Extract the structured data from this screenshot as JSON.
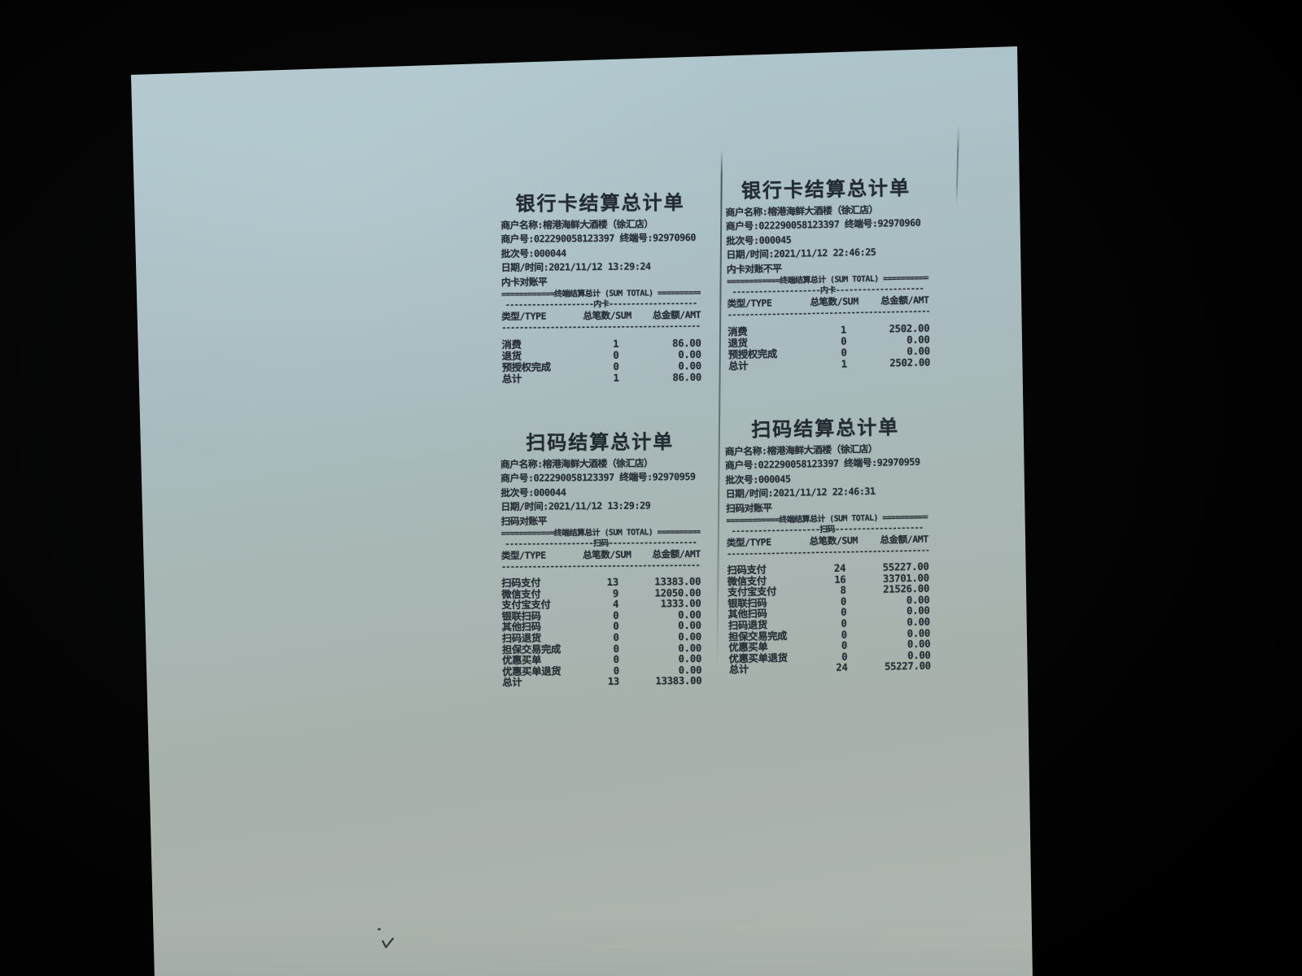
{
  "scene": {
    "background_color": "#020202",
    "paper_tint_top": "#aec5cb",
    "paper_tint_bottom": "#b2b9b2",
    "ink_color": "#262e35"
  },
  "receipts": [
    {
      "id": "bank-card-left",
      "title": "银行卡结算总计单",
      "info_lines": [
        "商户名称:榕港海鲜大酒楼（徐汇店）",
        "商户号:022290058123397 终端号:92970960",
        "批次号:000044",
        "日期/时间:2021/11/12 13:29:24",
        "内卡对账平"
      ],
      "sum_header": "============终端结算总计 (SUM TOTAL) ===========",
      "group_line": "--------------------内卡--------------------",
      "columns": [
        "类型/TYPE",
        "总笔数/SUM",
        "总金额/AMT"
      ],
      "divider": "----------------------------------------------",
      "rows": [
        {
          "type": "消费",
          "count": "1",
          "amount": "86.00"
        },
        {
          "type": "退货",
          "count": "0",
          "amount": "0.00"
        },
        {
          "type": "预授权完成",
          "count": "0",
          "amount": "0.00"
        },
        {
          "type": "总计",
          "count": "1",
          "amount": "86.00"
        }
      ]
    },
    {
      "id": "bank-card-right",
      "title": "银行卡结算总计单",
      "info_lines": [
        "商户名称:榕港海鲜大酒楼（徐汇店）",
        "商户号:022290058123397 终端号:92970960",
        "批次号:000045",
        "日期/时间:2021/11/12 22:46:25",
        "内卡对账不平"
      ],
      "sum_header": "============终端结算总计 (SUM TOTAL) ===========",
      "group_line": "--------------------内卡--------------------",
      "columns": [
        "类型/TYPE",
        "总笔数/SUM",
        "总金额/AMT"
      ],
      "divider": "----------------------------------------------",
      "rows": [
        {
          "type": "消费",
          "count": "1",
          "amount": "2502.00"
        },
        {
          "type": "退货",
          "count": "0",
          "amount": "0.00"
        },
        {
          "type": "预授权完成",
          "count": "0",
          "amount": "0.00"
        },
        {
          "type": "总计",
          "count": "1",
          "amount": "2502.00"
        }
      ]
    },
    {
      "id": "qr-left",
      "title": "扫码结算总计单",
      "info_lines": [
        "商户名称:榕港海鲜大酒楼（徐汇店）",
        "商户号:022290058123397 终端号:92970959",
        "批次号:000044",
        "日期/时间:2021/11/12 13:29:29",
        "扫码对账平"
      ],
      "sum_header": "============终端结算总计 (SUM TOTAL) ===========",
      "group_line": "--------------------扫码--------------------",
      "columns": [
        "类型/TYPE",
        "总笔数/SUM",
        "总金额/AMT"
      ],
      "divider": "----------------------------------------------",
      "rows": [
        {
          "type": "扫码支付",
          "count": "13",
          "amount": "13383.00"
        },
        {
          "type": "微信支付",
          "count": "9",
          "amount": "12050.00"
        },
        {
          "type": "支付宝支付",
          "count": "4",
          "amount": "1333.00"
        },
        {
          "type": "银联扫码",
          "count": "0",
          "amount": "0.00"
        },
        {
          "type": "其他扫码",
          "count": "0",
          "amount": "0.00"
        },
        {
          "type": "扫码退货",
          "count": "0",
          "amount": "0.00"
        },
        {
          "type": "担保交易完成",
          "count": "0",
          "amount": "0.00"
        },
        {
          "type": "优惠买单",
          "count": "0",
          "amount": "0.00"
        },
        {
          "type": "优惠买单退货",
          "count": "0",
          "amount": "0.00"
        },
        {
          "type": "总计",
          "count": "13",
          "amount": "13383.00"
        }
      ]
    },
    {
      "id": "qr-right",
      "title": "扫码结算总计单",
      "info_lines": [
        "商户名称:榕港海鲜大酒楼（徐汇店）",
        "商户号:022290058123397 终端号:92970959",
        "批次号:000045",
        "日期/时间:2021/11/12 22:46:31",
        "扫码对账平"
      ],
      "sum_header": "============终端结算总计 (SUM TOTAL) ===========",
      "group_line": "--------------------扫码--------------------",
      "columns": [
        "类型/TYPE",
        "总笔数/SUM",
        "总金额/AMT"
      ],
      "divider": "----------------------------------------------",
      "rows": [
        {
          "type": "扫码支付",
          "count": "24",
          "amount": "55227.00"
        },
        {
          "type": "微信支付",
          "count": "16",
          "amount": "33701.00"
        },
        {
          "type": "支付宝支付",
          "count": "8",
          "amount": "21526.00"
        },
        {
          "type": "银联扫码",
          "count": "0",
          "amount": "0.00"
        },
        {
          "type": "其他扫码",
          "count": "0",
          "amount": "0.00"
        },
        {
          "type": "扫码退货",
          "count": "0",
          "amount": "0.00"
        },
        {
          "type": "担保交易完成",
          "count": "0",
          "amount": "0.00"
        },
        {
          "type": "优惠买单",
          "count": "0",
          "amount": "0.00"
        },
        {
          "type": "优惠买单退货",
          "count": "0",
          "amount": "0.00"
        },
        {
          "type": "总计",
          "count": "24",
          "amount": "55227.00"
        }
      ]
    }
  ]
}
